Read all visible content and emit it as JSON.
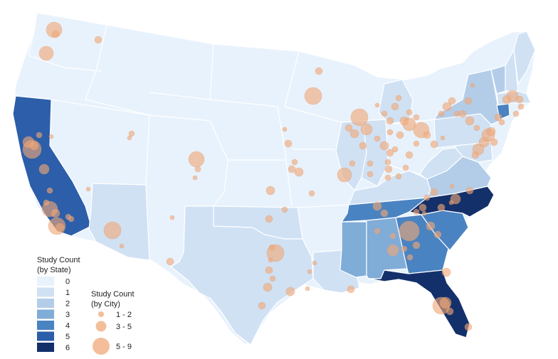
{
  "state_legend": {
    "title_line1": "Study Count",
    "title_line2": "(by State)",
    "classes": [
      {
        "label": "0",
        "color": "#e8f2fc"
      },
      {
        "label": "1",
        "color": "#d0e1f4"
      },
      {
        "label": "2",
        "color": "#b3cde9"
      },
      {
        "label": "3",
        "color": "#80acd8"
      },
      {
        "label": "4",
        "color": "#4a83c2"
      },
      {
        "label": "5",
        "color": "#2c5ea9"
      },
      {
        "label": "6",
        "color": "#14306b"
      }
    ]
  },
  "city_legend": {
    "title_line1": "Study Count",
    "title_line2": "(by City)",
    "classes": [
      {
        "label": "1 - 2"
      },
      {
        "label": "3 - 5"
      },
      {
        "label": "5 - 9"
      }
    ],
    "bubble_color": "#f0a878"
  },
  "colors": {
    "border": "#ffffff",
    "bubble_stroke": "#e59b68"
  },
  "states": [
    {
      "name": "California",
      "count": 5
    },
    {
      "name": "Arizona",
      "count": 1
    },
    {
      "name": "Texas",
      "count": 1
    },
    {
      "name": "Oklahoma",
      "count": 1
    },
    {
      "name": "Louisiana",
      "count": 1
    },
    {
      "name": "Mississippi",
      "count": 3
    },
    {
      "name": "Alabama",
      "count": 3
    },
    {
      "name": "Georgia",
      "count": 4
    },
    {
      "name": "Florida",
      "count": 6
    },
    {
      "name": "South Carolina",
      "count": 4
    },
    {
      "name": "North Carolina",
      "count": 6
    },
    {
      "name": "Tennessee",
      "count": 4
    },
    {
      "name": "Kentucky",
      "count": 1
    },
    {
      "name": "Virginia",
      "count": 2
    },
    {
      "name": "West Virginia",
      "count": 1
    },
    {
      "name": "Maryland",
      "count": 1
    },
    {
      "name": "Pennsylvania",
      "count": 1
    },
    {
      "name": "New York",
      "count": 2
    },
    {
      "name": "Vermont",
      "count": 2
    },
    {
      "name": "New Hampshire",
      "count": 1
    },
    {
      "name": "Maine",
      "count": 1
    },
    {
      "name": "Massachusetts",
      "count": 1
    },
    {
      "name": "Connecticut",
      "count": 4
    },
    {
      "name": "Michigan",
      "count": 1
    },
    {
      "name": "Illinois",
      "count": 1
    },
    {
      "name": "Indiana",
      "count": 1
    }
  ]
}
